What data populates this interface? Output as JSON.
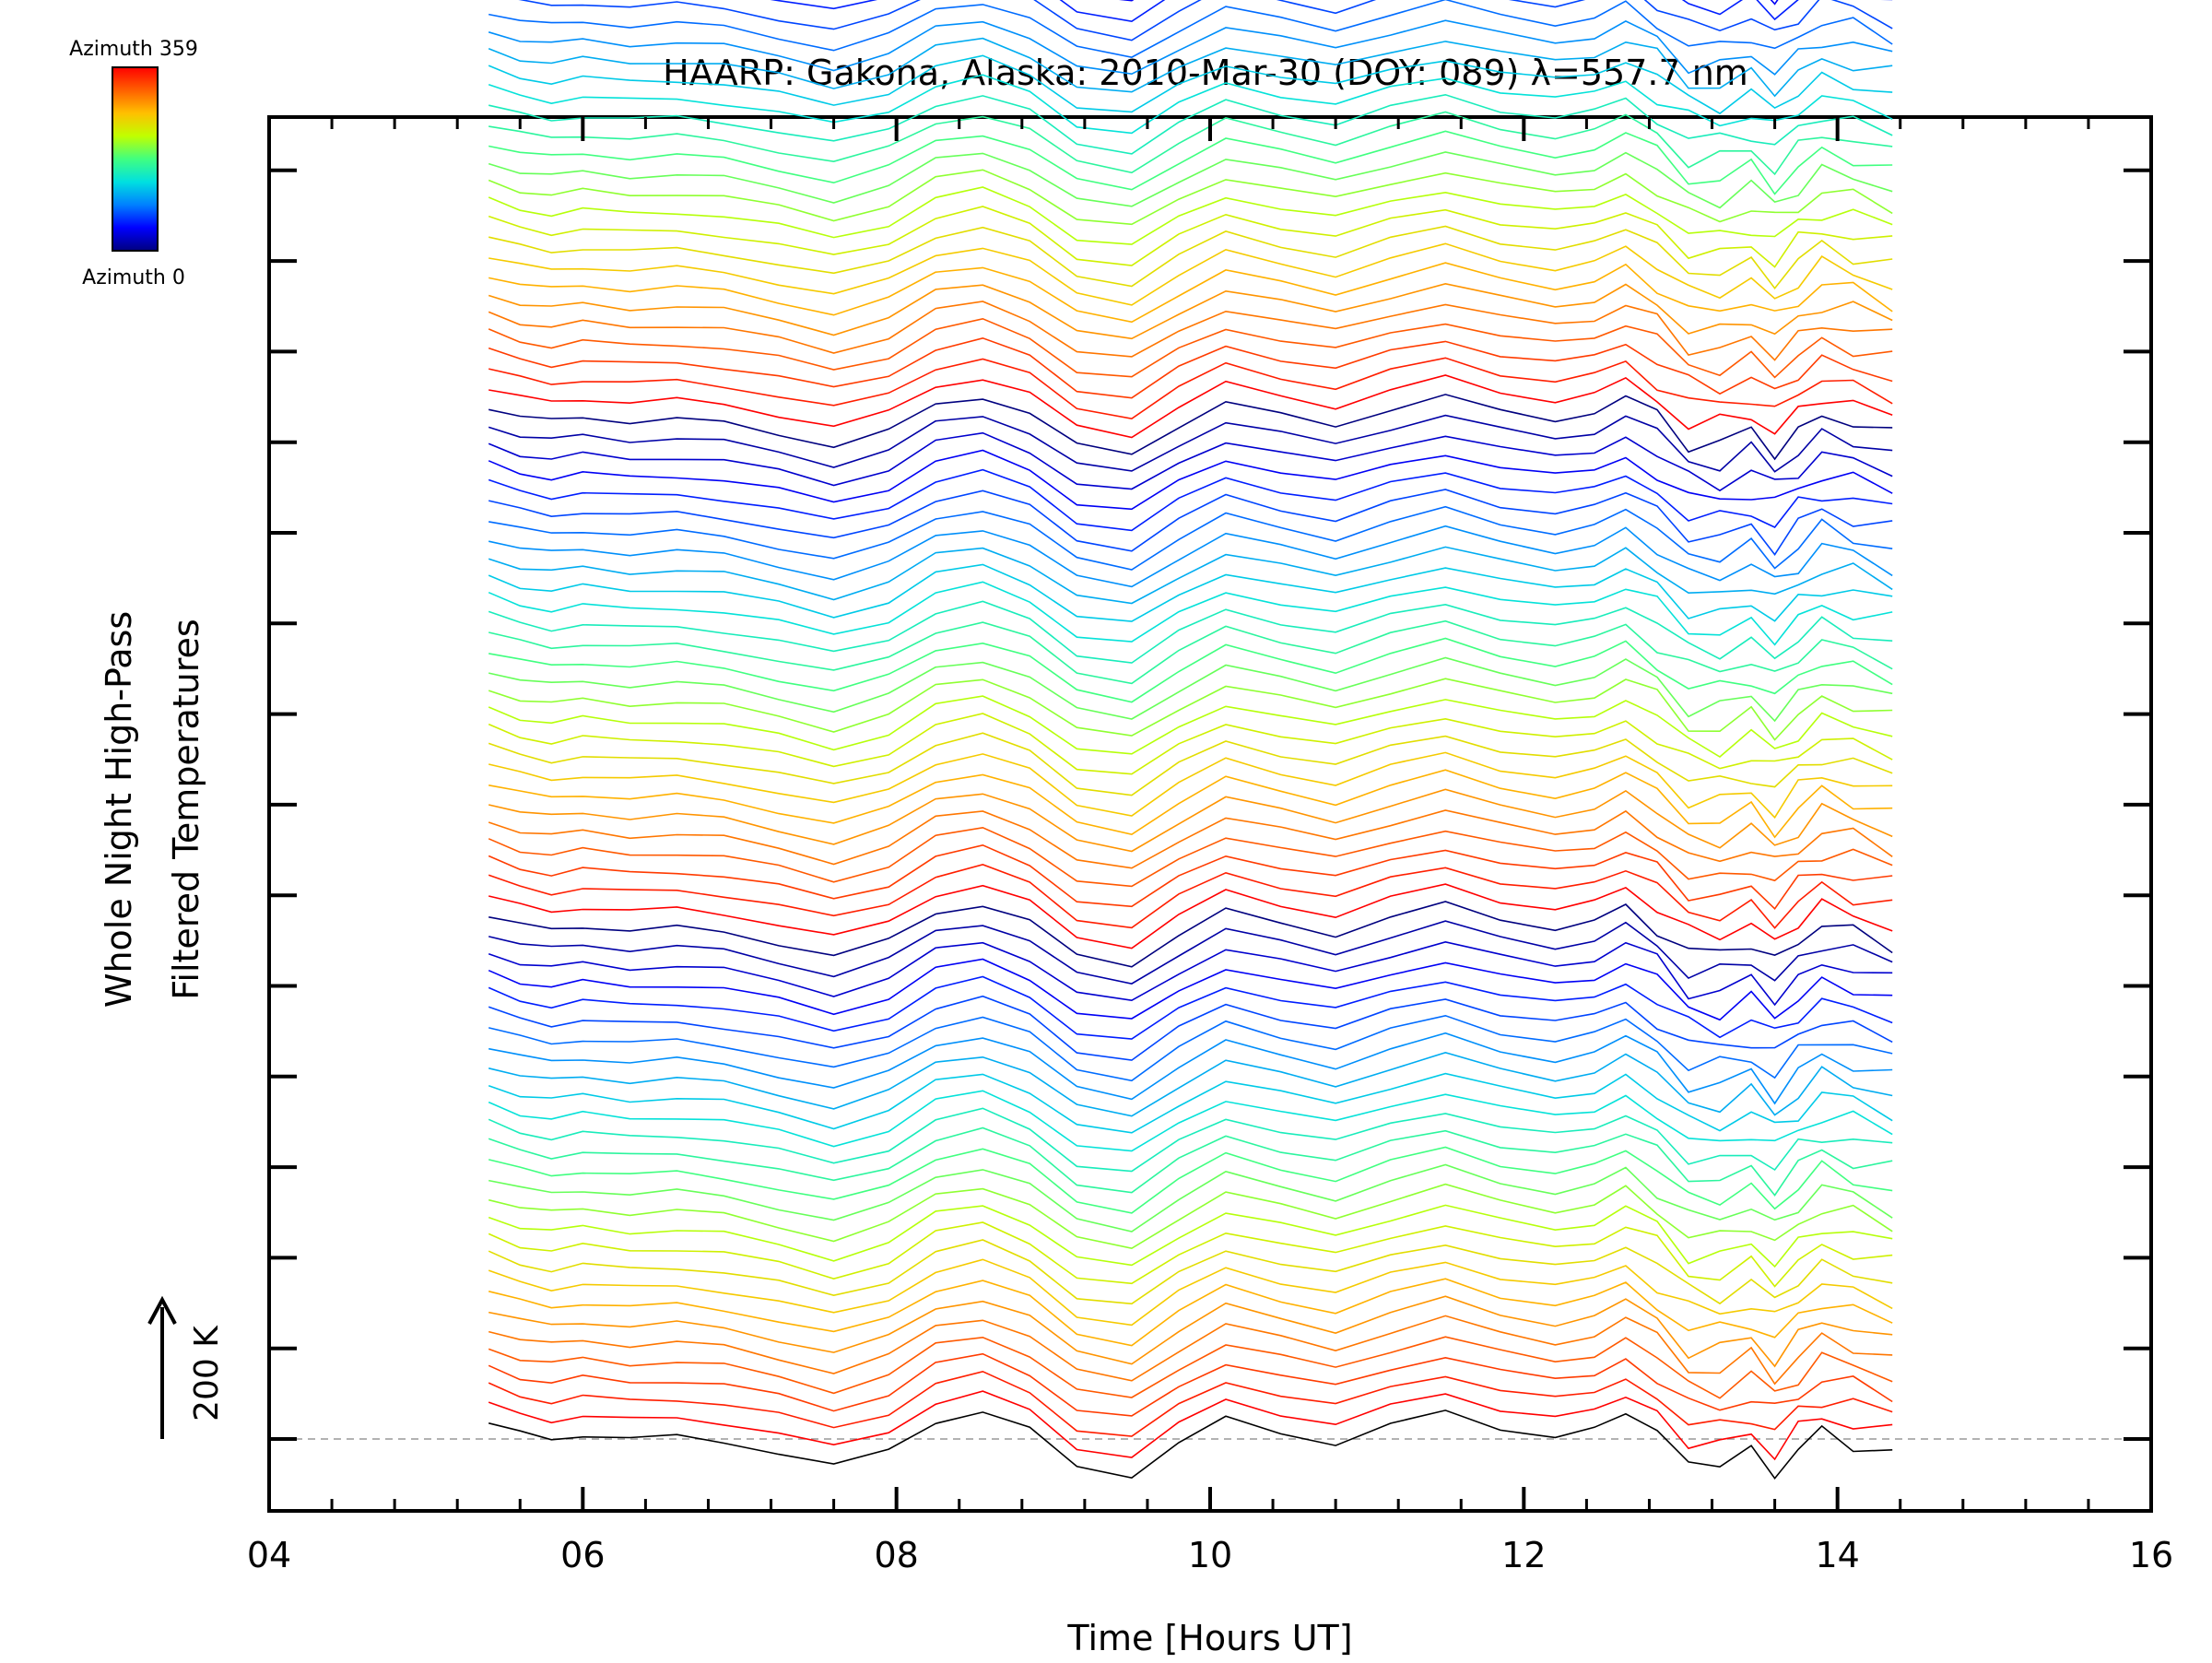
{
  "chart_data": {
    "type": "line",
    "title": "HAARP: Gakona,  Alaska: 2010-Mar-30 (DOY: 089) λ=557.7 nm",
    "xlabel": "Time [Hours UT]",
    "ylabel_line1": "Whole Night High-Pass",
    "ylabel_line2": "Filtered Temperatures",
    "xlim": [
      4,
      16
    ],
    "x_ticks": [
      "04",
      "06",
      "08",
      "10",
      "12",
      "14",
      "16"
    ],
    "y_ticks_count": 15,
    "y_tick_spacing_K": 200,
    "scale_label": "200 K",
    "colorbar": {
      "label_top": "Azimuth 359",
      "label_bottom": "Azimuth 0",
      "colors": [
        "#00007f",
        "#0000ff",
        "#0080ff",
        "#00e0e0",
        "#40ff80",
        "#c0ff00",
        "#ffc000",
        "#ff6000",
        "#ff0000"
      ]
    },
    "series_count": 140,
    "series_per_cycle": 27,
    "series_offset_K": 41.6,
    "baseline_K": 0,
    "time_start_hours": 5.4,
    "time_end_hours": 14.35,
    "profile_x": [
      5.4,
      5.6,
      5.8,
      6.0,
      6.3,
      6.6,
      6.9,
      7.25,
      7.6,
      7.95,
      8.25,
      8.55,
      8.85,
      9.15,
      9.5,
      9.8,
      10.1,
      10.45,
      10.8,
      11.15,
      11.5,
      11.85,
      12.2,
      12.45,
      12.65,
      12.85,
      13.05,
      13.25,
      13.45,
      13.6,
      13.75,
      13.9,
      14.1,
      14.35
    ],
    "profile_y": [
      35,
      12,
      0,
      10,
      0,
      5,
      -5,
      -30,
      -60,
      -25,
      40,
      60,
      20,
      -60,
      -80,
      -10,
      45,
      15,
      -10,
      30,
      60,
      25,
      5,
      20,
      55,
      10,
      -50,
      -55,
      -30,
      -70,
      -25,
      10,
      -5,
      -30
    ]
  }
}
